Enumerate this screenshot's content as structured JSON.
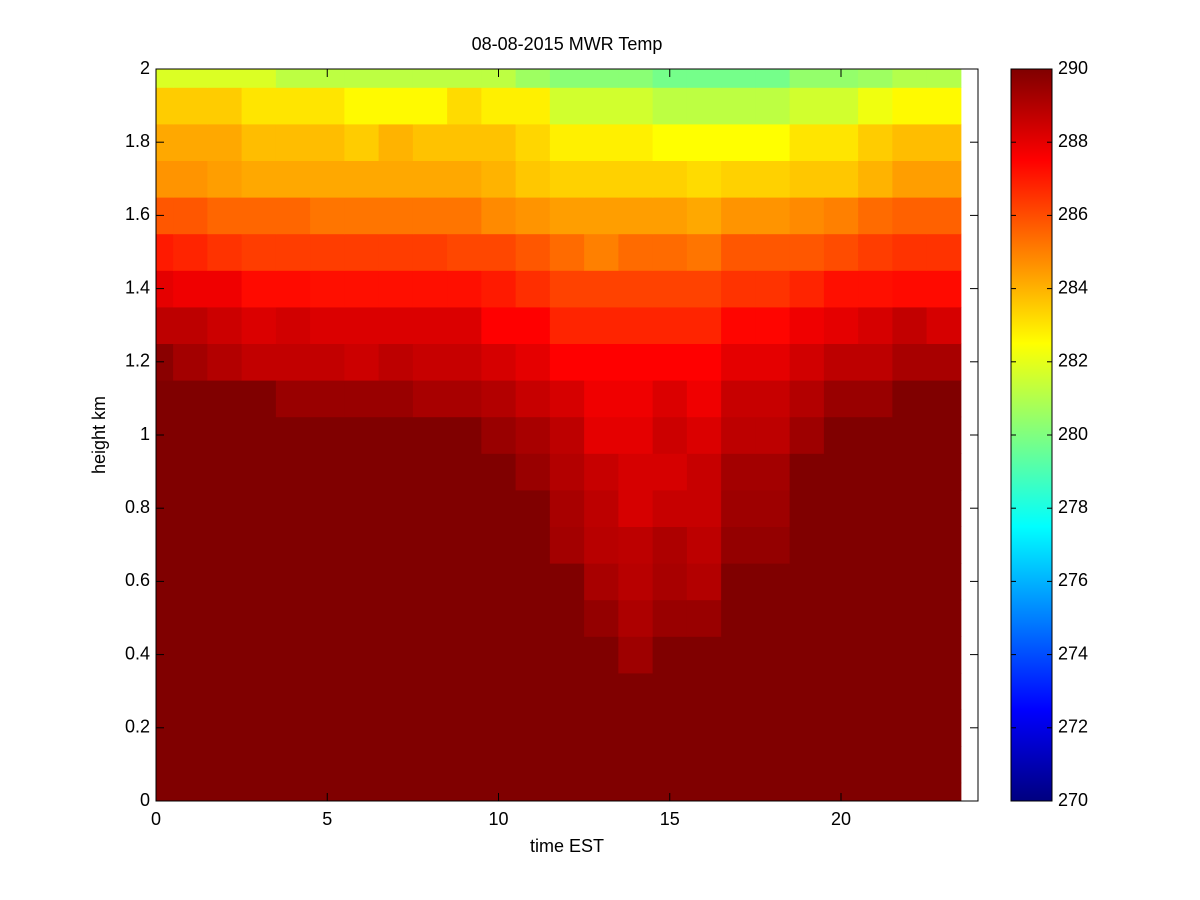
{
  "chart_data": {
    "type": "heatmap",
    "title": "08-08-2015 MWR Temp",
    "xlabel": "time EST",
    "ylabel": "height km",
    "x": [
      0,
      1,
      2,
      3,
      4,
      5,
      6,
      7,
      8,
      9,
      10,
      11,
      12,
      13,
      14,
      15,
      16,
      17,
      18,
      19,
      20,
      21,
      22,
      23
    ],
    "y": [
      0,
      0.1,
      0.2,
      0.3,
      0.4,
      0.5,
      0.6,
      0.7,
      0.8,
      0.9,
      1,
      1.1,
      1.2,
      1.3,
      1.4,
      1.5,
      1.6,
      1.7,
      1.8,
      1.9,
      2
    ],
    "values": [
      [
        290,
        290,
        290,
        290,
        290,
        290,
        290,
        290,
        290,
        290,
        290,
        290,
        290,
        290,
        290,
        290,
        290,
        290,
        290,
        290,
        290,
        290,
        290,
        290
      ],
      [
        290,
        290,
        290,
        290,
        290,
        290,
        290,
        290,
        290,
        290,
        290,
        290,
        290,
        290,
        290,
        290,
        290,
        290,
        290,
        290,
        290,
        290,
        290,
        290
      ],
      [
        290,
        290,
        290,
        290,
        290,
        290,
        290,
        290,
        290,
        290,
        290,
        290,
        290,
        290,
        290,
        290,
        290,
        290,
        290,
        290,
        290,
        290,
        290,
        290
      ],
      [
        290,
        290,
        290,
        290,
        290,
        290,
        290,
        290,
        290,
        290,
        290,
        290,
        290,
        290,
        290,
        290,
        290,
        290,
        290,
        290,
        290,
        290,
        290,
        290
      ],
      [
        290,
        290,
        290,
        290,
        290,
        290,
        290,
        290,
        290,
        290,
        290,
        290,
        290,
        290,
        289.4,
        290,
        290,
        290,
        290,
        290,
        290,
        290,
        290,
        290
      ],
      [
        290,
        290,
        290,
        290,
        290,
        290,
        290,
        290,
        290,
        290,
        290,
        290,
        290,
        289.6,
        289.1,
        289.5,
        289.5,
        290,
        290,
        290,
        290,
        290,
        290,
        290
      ],
      [
        290,
        290,
        290,
        290,
        290,
        290,
        290,
        290,
        290,
        290,
        290,
        290,
        290,
        289.2,
        288.9,
        289.2,
        289,
        290,
        290,
        290,
        290,
        290,
        290,
        290
      ],
      [
        290,
        290,
        290,
        290,
        290,
        290,
        290,
        290,
        290,
        290,
        290,
        290,
        289.3,
        288.9,
        288.8,
        289.1,
        288.8,
        289.6,
        289.6,
        290,
        290,
        290,
        290,
        290
      ],
      [
        290,
        290,
        290,
        290,
        290,
        290,
        290,
        290,
        290,
        290,
        290,
        290,
        289.2,
        288.8,
        288.3,
        288.6,
        288.6,
        289.4,
        289.4,
        290,
        290,
        290,
        290,
        290
      ],
      [
        290,
        290,
        290,
        290,
        290,
        290,
        290,
        290,
        290,
        290,
        290,
        289.5,
        289,
        288.6,
        288.3,
        288.3,
        288.6,
        289.3,
        289.3,
        290,
        290,
        290,
        290,
        290
      ],
      [
        290,
        290,
        290,
        290,
        290,
        290,
        290,
        290,
        290,
        290,
        289.5,
        289.2,
        288.8,
        288,
        288,
        288.5,
        288.2,
        288.8,
        288.8,
        289.4,
        290,
        290,
        290,
        290
      ],
      [
        290,
        290,
        290,
        290,
        289.5,
        289.5,
        289.5,
        289.5,
        289.2,
        289.2,
        289,
        288.6,
        288.3,
        287.8,
        287.8,
        288.2,
        287.8,
        288.6,
        288.6,
        289,
        289.5,
        289.5,
        290,
        290
      ],
      [
        289.8,
        289.3,
        289,
        288.7,
        288.7,
        288.7,
        288.5,
        288.8,
        288.6,
        288.6,
        288.3,
        288,
        287.5,
        287.5,
        287.5,
        287.5,
        287.5,
        288,
        288,
        288.4,
        288.8,
        288.8,
        289.2,
        289.2
      ],
      [
        288.8,
        288.8,
        288.5,
        288.2,
        288.4,
        288.2,
        288.2,
        288.2,
        288.2,
        288.2,
        287.5,
        287.5,
        286.8,
        286.8,
        286.8,
        286.8,
        286.8,
        287.4,
        287.4,
        287.8,
        288,
        288.3,
        288.7,
        288.3
      ],
      [
        288,
        287.8,
        287.8,
        287.3,
        287.3,
        287.2,
        287.2,
        287.2,
        287.2,
        287.2,
        287,
        286.6,
        286.2,
        286.2,
        286.2,
        286.2,
        286.2,
        286.5,
        286.5,
        286.8,
        287.2,
        287.2,
        287.3,
        287.3
      ],
      [
        287,
        286.8,
        286.5,
        286.3,
        286.3,
        286.3,
        286.3,
        286.3,
        286.3,
        286.1,
        286.1,
        285.8,
        285.4,
        285,
        285.4,
        285.4,
        285.2,
        285.8,
        285.8,
        285.8,
        286,
        286.3,
        286.5,
        286.5
      ],
      [
        285.8,
        285.8,
        285.5,
        285.5,
        285.5,
        285.2,
        285.2,
        285.2,
        285.2,
        285.2,
        284.8,
        284.6,
        284.4,
        284.4,
        284.4,
        284.4,
        284.2,
        284.6,
        284.6,
        284.8,
        285,
        285.4,
        285.6,
        285.6
      ],
      [
        284.6,
        284.6,
        284.4,
        284.2,
        284.2,
        284.2,
        284.2,
        284.2,
        284.2,
        284.2,
        284,
        283.6,
        283.4,
        283.4,
        283.4,
        283.4,
        283.2,
        283.4,
        283.4,
        283.6,
        283.6,
        284,
        284.4,
        284.4
      ],
      [
        284.2,
        284.2,
        284.2,
        283.8,
        283.8,
        283.8,
        283.5,
        284,
        283.7,
        283.7,
        283.7,
        283.3,
        282.8,
        282.8,
        282.8,
        282.5,
        282.5,
        282.5,
        282.5,
        283,
        283,
        283.5,
        283.8,
        283.8
      ],
      [
        283.5,
        283.5,
        283.5,
        283,
        283,
        283,
        282.6,
        282.6,
        282.6,
        283.2,
        282.8,
        282.8,
        281.6,
        281.6,
        281.6,
        281.2,
        281.2,
        281.2,
        281.2,
        281.6,
        281.6,
        282.2,
        282.6,
        282.6
      ],
      [
        281.8,
        281.8,
        281.8,
        281.8,
        281.2,
        281.2,
        281.2,
        281.2,
        281.2,
        281.2,
        281.2,
        280.6,
        280.2,
        280.2,
        280.2,
        279.8,
        279.8,
        279.8,
        279.8,
        280.4,
        280.4,
        280.6,
        281,
        281
      ]
    ],
    "colormap": "jet",
    "clim": [
      270,
      290
    ],
    "colorbar_ticks": [
      270,
      272,
      274,
      276,
      278,
      280,
      282,
      284,
      286,
      288,
      290
    ],
    "xlim": [
      0,
      24
    ],
    "xticks": [
      0,
      5,
      10,
      15,
      20
    ],
    "ylim": [
      0,
      2
    ],
    "yticks": [
      0,
      0.2,
      0.4,
      0.6,
      0.8,
      1,
      1.2,
      1.4,
      1.6,
      1.8,
      2
    ]
  }
}
